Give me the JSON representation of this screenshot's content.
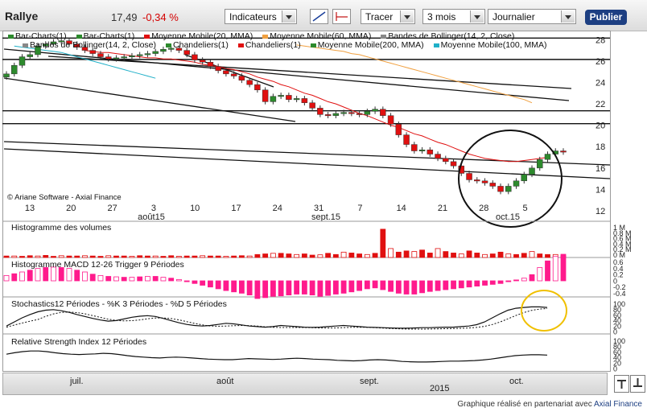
{
  "header": {
    "title": "Rallye",
    "price": "17,49",
    "change": "-0,34 %",
    "indicators_label": "Indicateurs",
    "draw_label": "Tracer",
    "period_label": "3 mois",
    "interval_label": "Journalier",
    "publish_label": "Publier"
  },
  "legend_items": [
    {
      "label": "Bar-Charts(1)",
      "color": "#2d8a2d"
    },
    {
      "label": "Bar-Charts(1)",
      "color": "#2d8a2d"
    },
    {
      "label": "Moyenne Mobile(20, MMA)",
      "color": "#e01010"
    },
    {
      "label": "Moyenne Mobile(60, MMA)",
      "color": "#f0a040"
    },
    {
      "label": "Bandes de Bollinger(14, 2, Close)",
      "color": "#888888"
    },
    {
      "label": "Bandes de Bollinger(14, 2, Close)",
      "color": "#888888"
    },
    {
      "label": "Chandeliers(1)",
      "color": "#2d8a2d"
    },
    {
      "label": "Chandeliers(1)",
      "color": "#e01010"
    },
    {
      "label": "Moyenne Mobile(200, MMA)",
      "color": "#2d8a2d"
    },
    {
      "label": "Moyenne Mobile(100, MMA)",
      "color": "#20b0c8"
    }
  ],
  "watermark": "© Ariane Software - Axial Finance",
  "panels": {
    "volume": "Histogramme des volumes",
    "macd": "Histogramme MACD 12-26   Trigger 9 Périodes",
    "stoch": "Stochastics12 Périodes  -  %K 3 Périodes  -  %D 5 Périodes",
    "rsi": "Relative Strength Index 12 Périodes"
  },
  "volume_axis": [
    "1 M",
    "0.8 M",
    "0.6 M",
    "0.4 M",
    "0.2 M",
    "0 M"
  ],
  "macd_axis": [
    "0.6",
    "0.4",
    "0.2",
    "0",
    "-0.2",
    "-0.4"
  ],
  "stoch_axis": [
    "100",
    "80",
    "60",
    "40",
    "20",
    "0"
  ],
  "rsi_axis": [
    "100",
    "80",
    "60",
    "40",
    "20",
    "0"
  ],
  "navigator": {
    "months": [
      "juil.",
      "août",
      "sept.",
      "oct."
    ],
    "year": "2015"
  },
  "credit": {
    "text": "Graphique réalisé en partenariat avec",
    "link": "Axial Finance"
  },
  "colors": {
    "up": "#2d8a2d",
    "down": "#e01010",
    "mm20": "#e01010",
    "mm60": "#f0a040",
    "mm100": "#20b0c8",
    "macd": "#ff1a8c",
    "highlight": "#f0c000"
  },
  "chart_data": {
    "type": "candlestick",
    "title": "Rallye",
    "ylim": [
      12,
      29
    ],
    "y_ticks": [
      12,
      14,
      16,
      18,
      20,
      22,
      24,
      26,
      28
    ],
    "x_tick_labels": [
      "13",
      "20",
      "27",
      "3",
      "10",
      "17",
      "24",
      "31",
      "7",
      "14",
      "21",
      "28",
      "5"
    ],
    "x_month_labels": [
      "août15",
      "sept.15",
      "oct.15"
    ],
    "close": [
      24.8,
      25.6,
      26.4,
      26.6,
      27.4,
      27.6,
      27.8,
      27.9,
      27.6,
      27.3,
      27.0,
      26.7,
      26.4,
      26.2,
      26.3,
      26.4,
      26.5,
      26.6,
      26.7,
      26.9,
      27.1,
      27.2,
      27.0,
      26.6,
      26.1,
      25.9,
      25.5,
      25.1,
      24.8,
      24.6,
      24.2,
      23.8,
      23.3,
      22.2,
      22.7,
      22.8,
      22.4,
      22.5,
      22.1,
      21.6,
      21.0,
      20.9,
      21.1,
      21.2,
      21.1,
      21.0,
      21.3,
      21.5,
      20.9,
      20.1,
      19.1,
      18.2,
      17.6,
      17.7,
      17.3,
      16.9,
      16.6,
      16.2,
      15.5,
      14.9,
      14.8,
      14.6,
      14.3,
      13.8,
      14.3,
      14.8,
      15.4,
      16.0,
      16.8,
      17.3,
      17.6,
      17.49
    ],
    "mm20": [
      27.0,
      26.9,
      26.8,
      26.8,
      26.7,
      26.6,
      26.5,
      26.4,
      26.3,
      26.3,
      26.2,
      26.2,
      26.1,
      26.0,
      25.9,
      25.7,
      25.6,
      25.5,
      25.3,
      25.2,
      25.0,
      24.8,
      24.5,
      24.3,
      24.1,
      23.8,
      23.6,
      23.3,
      23.0,
      22.8,
      22.5,
      22.2,
      22.0,
      21.7,
      21.4,
      21.1,
      20.9,
      20.6,
      20.3,
      20.0,
      19.8,
      19.5,
      19.2,
      19.0,
      18.7,
      18.4,
      18.2,
      17.9,
      17.6,
      17.3,
      17.1,
      16.9,
      16.8,
      16.7,
      16.6,
      16.6,
      16.7,
      16.8,
      16.9,
      17.0
    ],
    "mm60": [
      27.5,
      27.4,
      27.3,
      27.2,
      27.1,
      27.0,
      26.9,
      26.7,
      26.6,
      26.4,
      26.2,
      26.0,
      25.8,
      25.6,
      25.4,
      25.2,
      25.0,
      24.8,
      24.6,
      24.4,
      24.2,
      24.0,
      23.8,
      23.6,
      23.4,
      23.2,
      23.0,
      22.8,
      22.6,
      22.4,
      22.1
    ],
    "mm100": [
      27.4,
      27.3,
      27.2,
      27.1,
      27.0,
      26.9,
      26.8,
      26.6,
      26.4,
      26.2,
      26.0,
      25.8,
      25.6,
      25.4,
      25.2,
      25.0,
      24.8,
      24.6,
      24.4
    ],
    "volume": [
      0.05,
      0.05,
      0.04,
      0.06,
      0.05,
      0.07,
      0.04,
      0.06,
      0.05,
      0.05,
      0.06,
      0.05,
      0.04,
      0.06,
      0.05,
      0.05,
      0.04,
      0.06,
      0.05,
      0.05,
      0.04,
      0.06,
      0.04,
      0.05,
      0.05,
      0.06,
      0.05,
      0.05,
      0.04,
      0.05,
      0.06,
      0.05,
      0.1,
      0.12,
      0.14,
      0.14,
      0.12,
      0.1,
      0.12,
      0.08,
      0.09,
      0.14,
      0.1,
      0.18,
      0.15,
      0.12,
      0.1,
      0.14,
      0.95,
      0.3,
      0.18,
      0.22,
      0.2,
      0.25,
      0.15,
      0.3,
      0.2,
      0.15,
      0.12,
      0.22,
      0.15,
      0.1,
      0.12,
      0.18,
      0.12,
      0.1,
      0.14,
      0.2,
      0.12,
      0.1,
      0.1,
      0.06
    ],
    "macd": [
      0.12,
      0.16,
      0.2,
      0.24,
      0.28,
      0.3,
      0.31,
      0.3,
      0.28,
      0.24,
      0.2,
      0.15,
      0.12,
      0.1,
      0.09,
      0.08,
      0.08,
      0.09,
      0.1,
      0.1,
      0.08,
      0.06,
      0.03,
      -0.02,
      -0.06,
      -0.1,
      -0.14,
      -0.18,
      -0.22,
      -0.25,
      -0.28,
      -0.32,
      -0.4,
      -0.38,
      -0.35,
      -0.34,
      -0.32,
      -0.3,
      -0.3,
      -0.32,
      -0.35,
      -0.33,
      -0.3,
      -0.28,
      -0.25,
      -0.22,
      -0.18,
      -0.16,
      -0.2,
      -0.24,
      -0.28,
      -0.3,
      -0.3,
      -0.27,
      -0.24,
      -0.22,
      -0.2,
      -0.18,
      -0.16,
      -0.14,
      -0.12,
      -0.1,
      -0.08,
      -0.06,
      -0.02,
      0.02,
      0.06,
      0.14,
      0.3,
      0.45,
      0.55,
      0.6
    ],
    "stoch_k": [
      20,
      35,
      50,
      62,
      72,
      78,
      80,
      76,
      70,
      62,
      55,
      48,
      42,
      38,
      40,
      46,
      52,
      56,
      58,
      55,
      48,
      40,
      32,
      26,
      22,
      20,
      22,
      26,
      30,
      28,
      24,
      20,
      18,
      16,
      18,
      22,
      20,
      18,
      16,
      15,
      16,
      18,
      20,
      22,
      20,
      18,
      16,
      15,
      14,
      13,
      12,
      12,
      13,
      14,
      14,
      15,
      16,
      16,
      18,
      20,
      25,
      35,
      50,
      65,
      78,
      85,
      88,
      90,
      90,
      88
    ],
    "rsi": [
      55,
      60,
      64,
      66,
      66,
      64,
      60,
      57,
      55,
      54,
      55,
      56,
      58,
      57,
      54,
      50,
      47,
      45,
      43,
      42,
      44,
      45,
      44,
      42,
      40,
      38,
      37,
      36,
      36,
      38,
      40,
      39,
      38,
      37,
      38,
      40,
      41,
      40,
      38,
      37,
      36,
      34,
      33,
      32,
      33,
      35,
      36,
      35,
      33,
      30,
      29,
      28,
      28,
      29,
      30,
      31,
      31,
      32,
      33,
      35,
      38,
      42,
      46,
      50,
      52,
      53,
      53,
      52
    ]
  }
}
